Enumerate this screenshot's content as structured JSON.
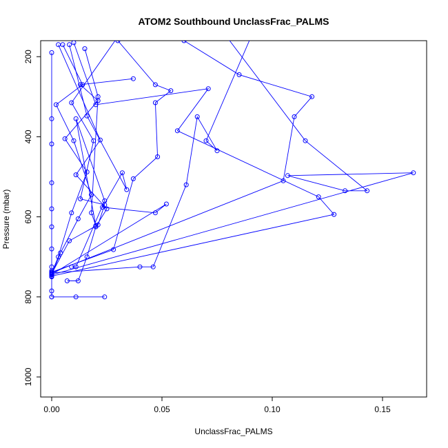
{
  "chart_data": {
    "type": "scatter",
    "title": "ATOM2 Southbound UnclassFrac_PALMS",
    "xlabel": "UnclassFrac_PALMS",
    "ylabel": "Pressure (mbar)",
    "xlim": [
      -0.005,
      0.17
    ],
    "ylim": [
      1050,
      160
    ],
    "y_reversed": true,
    "grid": false,
    "x_ticks": [
      0.0,
      0.05,
      0.1,
      0.15
    ],
    "x_tick_labels": [
      "0.00",
      "0.05",
      "0.10",
      "0.15"
    ],
    "y_ticks": [
      200,
      400,
      600,
      800,
      1000
    ],
    "y_tick_labels": [
      "200",
      "400",
      "600",
      "800",
      "1000"
    ],
    "color": "#0000ff",
    "marker": "open-circle",
    "series": [
      {
        "x": [
          0.0,
          0.0,
          0.0,
          0.0,
          0.0,
          0.0,
          0.0,
          0.0,
          0.0,
          0.0,
          0.0,
          0.0
        ],
        "y": [
          800,
          785,
          750,
          735,
          725,
          680,
          625,
          580,
          515,
          418,
          355,
          190
        ]
      },
      {
        "x": [
          0.0,
          0.003,
          0.009,
          0.016,
          0.006,
          0.021,
          0.013,
          0.037
        ],
        "y": [
          740,
          700,
          590,
          488,
          405,
          310,
          270,
          255
        ]
      },
      {
        "x": [
          0.0,
          0.004,
          0.012,
          0.018,
          0.01,
          0.002,
          0.014,
          0.005
        ],
        "y": [
          745,
          690,
          605,
          545,
          410,
          320,
          270,
          170
        ]
      },
      {
        "x": [
          0.0,
          0.008,
          0.021,
          0.024,
          0.013,
          0.019,
          0.009,
          0.03
        ],
        "y": [
          742,
          660,
          620,
          570,
          555,
          410,
          315,
          150
        ]
      },
      {
        "x": [
          0.0,
          0.028,
          0.037,
          0.048,
          0.047,
          0.054,
          0.047,
          0.03
        ],
        "y": [
          738,
          682,
          505,
          450,
          315,
          285,
          270,
          160
        ]
      },
      {
        "x": [
          0.0,
          0.04,
          0.046,
          0.061,
          0.066,
          0.075,
          0.07,
          0.09
        ],
        "y": [
          740,
          725,
          725,
          520,
          350,
          435,
          410,
          155
        ]
      },
      {
        "x": [
          0.0,
          0.105,
          0.11,
          0.118,
          0.085,
          0.06
        ],
        "y": [
          740,
          510,
          350,
          300,
          245,
          160
        ]
      },
      {
        "x": [
          0.0,
          0.164,
          0.107,
          0.133,
          0.143,
          0.115,
          0.08
        ],
        "y": [
          745,
          490,
          497,
          535,
          535,
          410,
          155
        ]
      },
      {
        "x": [
          0.0,
          0.128,
          0.121,
          0.057,
          0.071,
          0.02,
          0.01
        ],
        "y": [
          748,
          594,
          550,
          385,
          280,
          320,
          165
        ]
      },
      {
        "x": [
          0.0,
          0.052,
          0.047,
          0.023,
          0.032,
          0.034,
          0.016,
          0.008
        ],
        "y": [
          744,
          568,
          590,
          576,
          490,
          532,
          348,
          170
        ]
      },
      {
        "x": [
          0.007,
          0.012,
          0.016,
          0.02,
          0.025,
          0.011,
          0.022,
          0.003
        ],
        "y": [
          760,
          760,
          700,
          625,
          580,
          495,
          408,
          170
        ]
      },
      {
        "x": [
          0.009,
          0.011,
          0.024,
          0.011,
          0.02,
          0.018,
          0.021,
          0.015
        ],
        "y": [
          725,
          725,
          560,
          355,
          622,
          590,
          300,
          180
        ]
      },
      {
        "x": [
          0.0,
          0.011,
          0.024
        ],
        "y": [
          800,
          800,
          800
        ]
      }
    ]
  }
}
